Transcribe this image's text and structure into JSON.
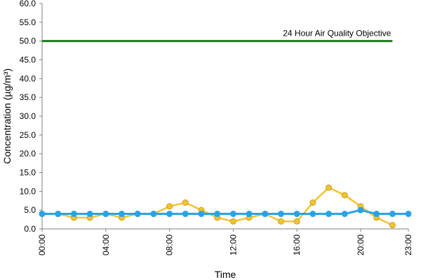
{
  "chart_data": {
    "type": "line",
    "xlabel": "Time",
    "ylabel": "Concentration (µg/m³)",
    "ylim": [
      0,
      60
    ],
    "y_ticks": [
      "0.0",
      "5.0",
      "10.0",
      "15.0",
      "20.0",
      "25.0",
      "30.0",
      "35.0",
      "40.0",
      "45.0",
      "50.0",
      "55.0",
      "60.0"
    ],
    "x_ticks": [
      {
        "hour": 0,
        "label": "00:00"
      },
      {
        "hour": 4,
        "label": "04:00"
      },
      {
        "hour": 8,
        "label": "08:00"
      },
      {
        "hour": 12,
        "label": "12:00"
      },
      {
        "hour": 16,
        "label": "16:00"
      },
      {
        "hour": 20,
        "label": "20:00"
      },
      {
        "hour": 23,
        "label": "23:00"
      }
    ],
    "xlim": [
      0,
      23
    ],
    "series": [
      {
        "color": "#f2c431",
        "marker_color": "#f2c431",
        "x": [
          0,
          1,
          2,
          3,
          4,
          5,
          6,
          7,
          8,
          9,
          10,
          11,
          12,
          13,
          14,
          15,
          16,
          17,
          18,
          19,
          20,
          21,
          22
        ],
        "values": [
          4,
          4,
          3,
          3,
          4,
          3,
          4,
          4,
          6,
          7,
          5,
          3,
          2,
          3,
          4,
          2,
          2,
          7,
          11,
          9,
          6,
          3,
          1
        ]
      },
      {
        "color": "#29a3e6",
        "marker_color": "#29a3e6",
        "x": [
          0,
          1,
          2,
          3,
          4,
          5,
          6,
          7,
          8,
          9,
          10,
          11,
          12,
          13,
          14,
          15,
          16,
          17,
          18,
          19,
          20,
          21,
          22,
          23
        ],
        "values": [
          4,
          4,
          4,
          4,
          4,
          4,
          4,
          4,
          4,
          4,
          4,
          4,
          4,
          4,
          4,
          4,
          4,
          4,
          4,
          4,
          5,
          4,
          4,
          4
        ]
      }
    ],
    "reference_line": {
      "value": 50,
      "x_start": 0,
      "x_end": 22,
      "label": "24 Hour Air Quality Objective",
      "color": "#1e7a1e"
    },
    "grid": false,
    "legend": "none"
  }
}
